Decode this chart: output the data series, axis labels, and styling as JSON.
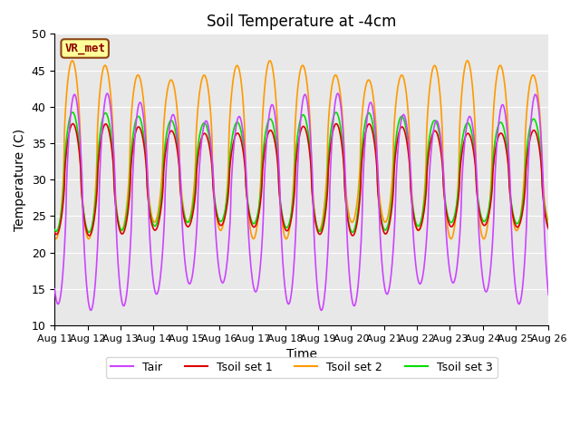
{
  "title": "Soil Temperature at -4cm",
  "xlabel": "Time",
  "ylabel": "Temperature (C)",
  "ylim": [
    10,
    50
  ],
  "x_tick_labels": [
    "Aug 11",
    "Aug 12",
    "Aug 13",
    "Aug 14",
    "Aug 15",
    "Aug 16",
    "Aug 17",
    "Aug 18",
    "Aug 19",
    "Aug 20",
    "Aug 21",
    "Aug 22",
    "Aug 23",
    "Aug 24",
    "Aug 25",
    "Aug 26"
  ],
  "annotation_text": "VR_met",
  "annotation_color": "#8B0000",
  "annotation_bg": "#FFFF99",
  "annotation_edge": "#8B4513",
  "legend_labels": [
    "Tair",
    "Tsoil set 1",
    "Tsoil set 2",
    "Tsoil set 3"
  ],
  "line_colors": {
    "Tair": "#CC44FF",
    "Tsoil set 1": "#DD0000",
    "Tsoil set 2": "#FF9900",
    "Tsoil set 3": "#00DD00"
  },
  "bg_color": "#E8E8E8",
  "grid_color": "#FFFFFF",
  "Tair_mean": 27,
  "Tair_amp": 13,
  "Tair_phase": 2.2,
  "Tsoil2_mean": 34,
  "Tsoil2_amp": 11,
  "Tsoil2_phase": 1.8,
  "Tsoil1_mean": 30,
  "Tsoil1_amp": 7,
  "Tsoil1_phase": 1.9,
  "Tsoil3_mean": 31,
  "Tsoil3_amp": 7.5,
  "Tsoil3_phase": 1.85
}
